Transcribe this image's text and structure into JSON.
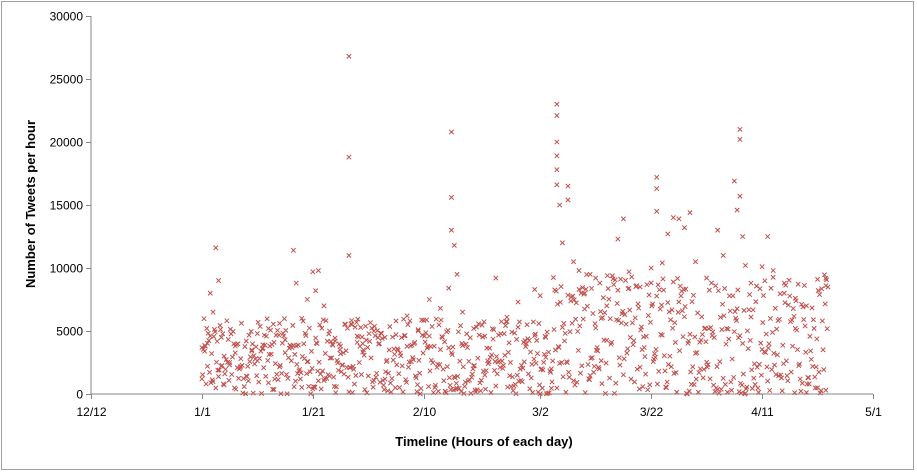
{
  "chart_data": {
    "type": "scatter",
    "title": "",
    "xlabel": "Timeline (Hours of each day)",
    "ylabel": "Number of Tweets per hour",
    "xlim": [
      "12/12",
      "5/1"
    ],
    "ylim": [
      0,
      30000
    ],
    "x_ticks": [
      "12/12",
      "1/1",
      "1/21",
      "2/10",
      "3/2",
      "3/22",
      "4/11",
      "5/1"
    ],
    "y_ticks": [
      0,
      5000,
      10000,
      15000,
      20000,
      25000,
      30000
    ],
    "marker": "x",
    "marker_color": "#c0504d",
    "grid": false,
    "legend": "none",
    "series": [
      {
        "name": "",
        "points": [
          {
            "x": "1/1 00:00",
            "y": 1200
          },
          {
            "x": "1/1 12:00",
            "y": 3400
          },
          {
            "x": "1/2 00:00",
            "y": 2200
          },
          {
            "x": "1/2 12:00",
            "y": 8000
          },
          {
            "x": "1/3 00:00",
            "y": 6500
          },
          {
            "x": "1/3 12:00",
            "y": 11600
          },
          {
            "x": "1/4 00:00",
            "y": 9000
          },
          {
            "x": "1/4 12:00",
            "y": 4500
          },
          {
            "x": "1/5 00:00",
            "y": 3000
          },
          {
            "x": "1/6 00:00",
            "y": 2500
          },
          {
            "x": "1/7 00:00",
            "y": 3800
          },
          {
            "x": "1/8 00:00",
            "y": 2800
          },
          {
            "x": "1/9 00:00",
            "y": 4200
          },
          {
            "x": "1/10 00:00",
            "y": 3500
          },
          {
            "x": "1/11 00:00",
            "y": 4800
          },
          {
            "x": "1/12 00:00",
            "y": 3900
          },
          {
            "x": "1/13 00:00",
            "y": 5200
          },
          {
            "x": "1/14 00:00",
            "y": 4100
          },
          {
            "x": "1/15 00:00",
            "y": 5600
          },
          {
            "x": "1/16 00:00",
            "y": 4300
          },
          {
            "x": "1/17 12:00",
            "y": 11400
          },
          {
            "x": "1/18 00:00",
            "y": 8800
          },
          {
            "x": "1/19 00:00",
            "y": 6000
          },
          {
            "x": "1/20 00:00",
            "y": 7500
          },
          {
            "x": "1/21 00:00",
            "y": 9700
          },
          {
            "x": "1/21 12:00",
            "y": 8200
          },
          {
            "x": "1/22 00:00",
            "y": 9800
          },
          {
            "x": "1/23 00:00",
            "y": 7000
          },
          {
            "x": "1/24 00:00",
            "y": 5000
          },
          {
            "x": "1/25 00:00",
            "y": 4200
          },
          {
            "x": "1/26 00:00",
            "y": 3800
          },
          {
            "x": "1/27 12:00",
            "y": 26800
          },
          {
            "x": "1/27 12:00",
            "y": 18800
          },
          {
            "x": "1/27 12:00",
            "y": 11000
          },
          {
            "x": "1/28 00:00",
            "y": 5500
          },
          {
            "x": "1/29 00:00",
            "y": 4600
          },
          {
            "x": "1/30 00:00",
            "y": 4000
          },
          {
            "x": "2/1 00:00",
            "y": 5000
          },
          {
            "x": "2/3 00:00",
            "y": 4500
          },
          {
            "x": "2/5 00:00",
            "y": 5800
          },
          {
            "x": "2/7 00:00",
            "y": 6200
          },
          {
            "x": "2/9 00:00",
            "y": 5100
          },
          {
            "x": "2/11 00:00",
            "y": 7500
          },
          {
            "x": "2/13 00:00",
            "y": 6800
          },
          {
            "x": "2/14 12:00",
            "y": 8400
          },
          {
            "x": "2/15 00:00",
            "y": 20800
          },
          {
            "x": "2/15 00:00",
            "y": 15600
          },
          {
            "x": "2/15 00:00",
            "y": 13000
          },
          {
            "x": "2/15 12:00",
            "y": 11800
          },
          {
            "x": "2/16 00:00",
            "y": 9500
          },
          {
            "x": "2/17 00:00",
            "y": 6500
          },
          {
            "x": "2/19 00:00",
            "y": 5200
          },
          {
            "x": "2/21 00:00",
            "y": 4600
          },
          {
            "x": "2/23 00:00",
            "y": 9200
          },
          {
            "x": "2/25 00:00",
            "y": 6100
          },
          {
            "x": "2/27 00:00",
            "y": 7300
          },
          {
            "x": "3/1 00:00",
            "y": 8300
          },
          {
            "x": "3/2 00:00",
            "y": 7800
          },
          {
            "x": "3/3 00:00",
            "y": 4500
          },
          {
            "x": "3/4 00:00",
            "y": 2000
          },
          {
            "x": "3/5 00:00",
            "y": 23000
          },
          {
            "x": "3/5 00:00",
            "y": 22100
          },
          {
            "x": "3/5 00:00",
            "y": 20000
          },
          {
            "x": "3/5 00:00",
            "y": 18900
          },
          {
            "x": "3/5 00:00",
            "y": 17800
          },
          {
            "x": "3/5 00:00",
            "y": 16600
          },
          {
            "x": "3/5 12:00",
            "y": 15000
          },
          {
            "x": "3/6 00:00",
            "y": 12000
          },
          {
            "x": "3/7 00:00",
            "y": 16500
          },
          {
            "x": "3/7 00:00",
            "y": 15400
          },
          {
            "x": "3/8 00:00",
            "y": 10500
          },
          {
            "x": "3/9 00:00",
            "y": 9800
          },
          {
            "x": "3/10 00:00",
            "y": 8000
          },
          {
            "x": "3/11 00:00",
            "y": 9500
          },
          {
            "x": "3/12 00:00",
            "y": 9200
          },
          {
            "x": "3/13 00:00",
            "y": 6000
          },
          {
            "x": "3/14 00:00",
            "y": 7000
          },
          {
            "x": "3/16 00:00",
            "y": 12300
          },
          {
            "x": "3/17 00:00",
            "y": 13900
          },
          {
            "x": "3/18 00:00",
            "y": 9700
          },
          {
            "x": "3/20 00:00",
            "y": 8500
          },
          {
            "x": "3/22 00:00",
            "y": 10000
          },
          {
            "x": "3/23 00:00",
            "y": 17200
          },
          {
            "x": "3/23 00:00",
            "y": 16300
          },
          {
            "x": "3/23 00:00",
            "y": 14500
          },
          {
            "x": "3/24 00:00",
            "y": 10400
          },
          {
            "x": "3/25 00:00",
            "y": 12700
          },
          {
            "x": "3/26 00:00",
            "y": 14000
          },
          {
            "x": "3/27 00:00",
            "y": 13900
          },
          {
            "x": "3/28 00:00",
            "y": 13200
          },
          {
            "x": "3/29 00:00",
            "y": 14400
          },
          {
            "x": "3/30 00:00",
            "y": 10500
          },
          {
            "x": "4/1 00:00",
            "y": 9200
          },
          {
            "x": "4/3 00:00",
            "y": 13000
          },
          {
            "x": "4/4 00:00",
            "y": 11000
          },
          {
            "x": "4/6 00:00",
            "y": 16900
          },
          {
            "x": "4/6 12:00",
            "y": 14600
          },
          {
            "x": "4/7 00:00",
            "y": 21000
          },
          {
            "x": "4/7 00:00",
            "y": 20200
          },
          {
            "x": "4/7 00:00",
            "y": 15700
          },
          {
            "x": "4/7 12:00",
            "y": 12500
          },
          {
            "x": "4/8 00:00",
            "y": 10200
          },
          {
            "x": "4/9 00:00",
            "y": 8800
          },
          {
            "x": "4/11 00:00",
            "y": 10100
          },
          {
            "x": "4/12 00:00",
            "y": 12500
          },
          {
            "x": "4/13 00:00",
            "y": 9800
          },
          {
            "x": "4/15 00:00",
            "y": 8000
          },
          {
            "x": "4/17 00:00",
            "y": 7600
          },
          {
            "x": "4/19 00:00",
            "y": 7000
          },
          {
            "x": "4/21 00:00",
            "y": 9100
          },
          {
            "x": "4/22 12:00",
            "y": 8600
          },
          {
            "x": "4/22 12:00",
            "y": 300
          }
        ],
        "dense_band": {
          "from": "1/1",
          "to": "4/23",
          "ranges": [
            {
              "from": "1/1",
              "to": "3/4",
              "y": [
                0,
                6000
              ]
            },
            {
              "from": "3/4",
              "to": "4/23",
              "y": [
                0,
                9500
              ]
            }
          ]
        }
      }
    ]
  }
}
